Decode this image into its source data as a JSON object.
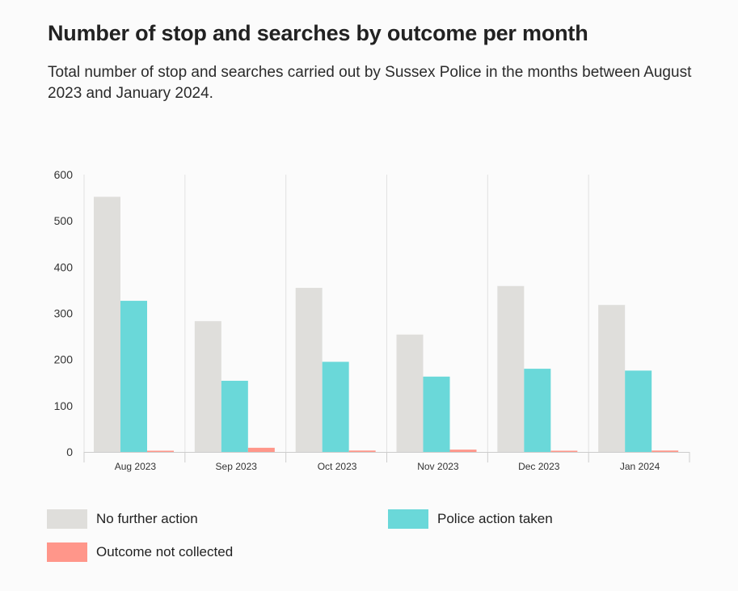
{
  "header": {
    "title": "Number of stop and searches by outcome per month",
    "subtitle": "Total number of stop and searches carried out by Sussex Police in the months between August 2023 and January 2024."
  },
  "colors": {
    "no_further_action": "#dfdedb",
    "police_action_taken": "#6ad8d9",
    "outcome_not_collected": "#ff968a",
    "gridline": "#e2e2e2",
    "axis": "#cccccc"
  },
  "chart_data": {
    "type": "bar",
    "title": "Number of stop and searches by outcome per month",
    "subtitle": "Total number of stop and searches carried out by Sussex Police in the months between August 2023 and January 2024.",
    "categories": [
      "Aug 2023",
      "Sep 2023",
      "Oct 2023",
      "Nov 2023",
      "Dec 2023",
      "Jan 2024"
    ],
    "series": [
      {
        "name": "No further action",
        "color": "#dfdedb",
        "values": [
          552,
          283,
          355,
          254,
          359,
          318
        ]
      },
      {
        "name": "Police action taken",
        "color": "#6ad8d9",
        "values": [
          327,
          154,
          195,
          163,
          180,
          176
        ]
      },
      {
        "name": "Outcome not collected",
        "color": "#ff968a",
        "values": [
          2,
          9,
          3,
          5,
          2,
          3
        ]
      }
    ],
    "ylim": [
      0,
      600
    ],
    "yticks": [
      0,
      100,
      200,
      300,
      400,
      500,
      600
    ],
    "grid": "vertical separators between categories",
    "legend_position": "bottom"
  }
}
